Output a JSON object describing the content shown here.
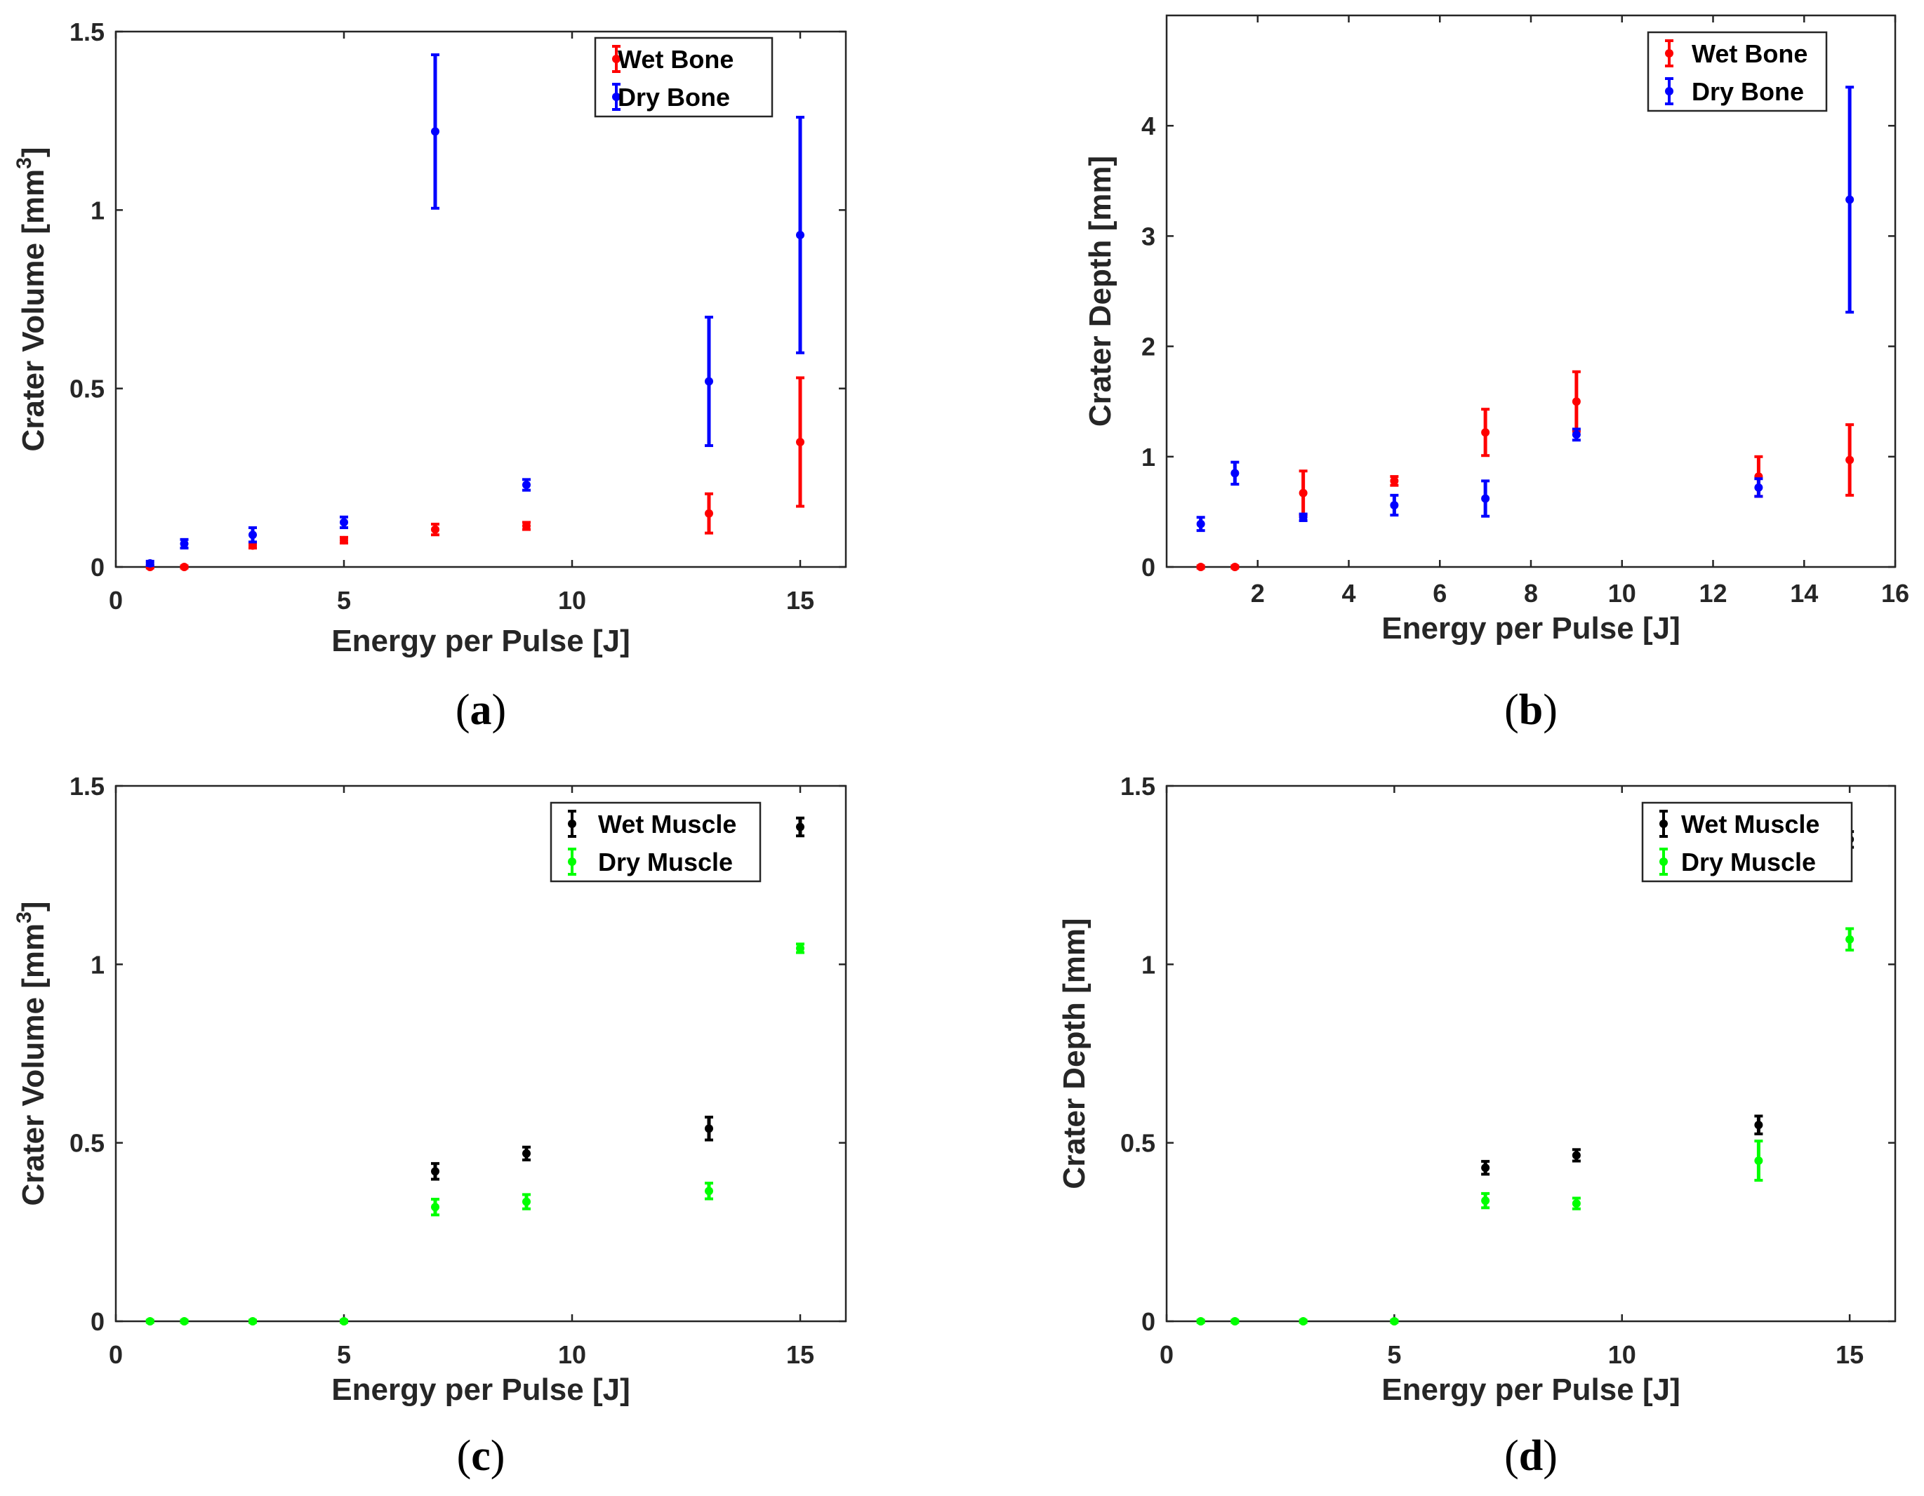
{
  "figure_title": "",
  "chart_data": [
    {
      "id": "a",
      "type": "scatter",
      "panel_label": "a",
      "title": "",
      "xlabel": "Energy per Pulse [J]",
      "ylabel": "Crater Volume [mm",
      "ylabel_sup": "3",
      "ylabel_end": "]",
      "xlim": [
        0,
        16
      ],
      "ylim": [
        0,
        1.5
      ],
      "xticks": [
        0,
        5,
        10,
        15
      ],
      "yticks": [
        0,
        0.5,
        1,
        1.5
      ],
      "xtick_labels": [
        "0",
        "5",
        "10",
        "15"
      ],
      "ytick_labels": [
        "0",
        "0.5",
        "1",
        "1.5"
      ],
      "legend_position": "top-right",
      "series": [
        {
          "name": "Wet Bone",
          "color": "#ff0000",
          "x": [
            0.75,
            1.5,
            3,
            5,
            7,
            9,
            13,
            15
          ],
          "y": [
            0.0,
            0.0,
            0.06,
            0.075,
            0.105,
            0.115,
            0.15,
            0.35
          ],
          "err": [
            0.003,
            0.003,
            0.007,
            0.008,
            0.015,
            0.01,
            0.055,
            0.18
          ]
        },
        {
          "name": "Dry Bone",
          "color": "#0000ff",
          "x": [
            0.75,
            1.5,
            3,
            5,
            7,
            9,
            13,
            15
          ],
          "y": [
            0.01,
            0.065,
            0.09,
            0.125,
            1.22,
            0.23,
            0.52,
            0.93
          ],
          "err": [
            0.006,
            0.012,
            0.02,
            0.015,
            0.215,
            0.015,
            0.18,
            0.33
          ]
        }
      ]
    },
    {
      "id": "b",
      "type": "scatter",
      "panel_label": "b",
      "title": "",
      "xlabel": "Energy per Pulse [J]",
      "ylabel": "Crater Depth [mm]",
      "ylabel_sup": "",
      "ylabel_end": "",
      "xlim": [
        0,
        16
      ],
      "ylim": [
        0,
        5
      ],
      "xticks": [
        2,
        4,
        6,
        8,
        10,
        12,
        14,
        16
      ],
      "yticks": [
        0,
        1,
        2,
        3,
        4
      ],
      "xtick_labels": [
        "2",
        "4",
        "6",
        "8",
        "10",
        "12",
        "14",
        "16"
      ],
      "ytick_labels": [
        "0",
        "1",
        "2",
        "3",
        "4"
      ],
      "legend_position": "top-right",
      "series": [
        {
          "name": "Wet Bone",
          "color": "#ff0000",
          "x": [
            0.75,
            1.5,
            3,
            5,
            7,
            9,
            13,
            15
          ],
          "y": [
            0.0,
            0.0,
            0.67,
            0.78,
            1.22,
            1.5,
            0.82,
            0.97
          ],
          "err": [
            0.01,
            0.01,
            0.2,
            0.04,
            0.21,
            0.27,
            0.18,
            0.32
          ]
        },
        {
          "name": "Dry Bone",
          "color": "#0000ff",
          "x": [
            0.75,
            1.5,
            3,
            5,
            7,
            9,
            13,
            15
          ],
          "y": [
            0.39,
            0.85,
            0.45,
            0.56,
            0.62,
            1.2,
            0.72,
            3.33
          ],
          "err": [
            0.06,
            0.1,
            0.03,
            0.09,
            0.16,
            0.05,
            0.08,
            1.02
          ]
        }
      ]
    },
    {
      "id": "c",
      "type": "scatter",
      "panel_label": "c",
      "title": "",
      "xlabel": "Energy per Pulse [J]",
      "ylabel": "Crater Volume [mm",
      "ylabel_sup": "3",
      "ylabel_end": "]",
      "xlim": [
        0,
        16
      ],
      "ylim": [
        0,
        1.5
      ],
      "xticks": [
        0,
        5,
        10,
        15
      ],
      "yticks": [
        0,
        0.5,
        1,
        1.5
      ],
      "xtick_labels": [
        "0",
        "5",
        "10",
        "15"
      ],
      "ytick_labels": [
        "0",
        "0.5",
        "1",
        "1.5"
      ],
      "legend_position": "top-right",
      "series": [
        {
          "name": "Wet Muscle",
          "color": "#000000",
          "x": [
            7,
            9,
            13,
            15
          ],
          "y": [
            0.42,
            0.47,
            0.54,
            1.385
          ],
          "err": [
            0.022,
            0.018,
            0.032,
            0.025
          ]
        },
        {
          "name": "Dry Muscle",
          "color": "#00ff00",
          "x": [
            0.75,
            1.5,
            3,
            5,
            7,
            9,
            13,
            15
          ],
          "y": [
            0.0,
            0.0,
            0.0,
            0.0,
            0.32,
            0.335,
            0.365,
            1.045
          ],
          "err": [
            0.003,
            0.003,
            0.003,
            0.003,
            0.022,
            0.02,
            0.022,
            0.012
          ]
        }
      ]
    },
    {
      "id": "d",
      "type": "scatter",
      "panel_label": "d",
      "title": "",
      "xlabel": "Energy per Pulse [J]",
      "ylabel": "Crater Depth [mm]",
      "ylabel_sup": "",
      "ylabel_end": "",
      "xlim": [
        0,
        16
      ],
      "ylim": [
        0,
        1.5
      ],
      "xticks": [
        0,
        5,
        10,
        15
      ],
      "yticks": [
        0,
        0.5,
        1,
        1.5
      ],
      "xtick_labels": [
        "0",
        "5",
        "10",
        "15"
      ],
      "ytick_labels": [
        "0",
        "0.5",
        "1",
        "1.5"
      ],
      "legend_position": "top-right",
      "series": [
        {
          "name": "Wet Muscle",
          "color": "#000000",
          "x": [
            7,
            9,
            13,
            15
          ],
          "y": [
            0.43,
            0.465,
            0.55,
            1.35
          ],
          "err": [
            0.018,
            0.016,
            0.025,
            0.022
          ]
        },
        {
          "name": "Dry Muscle",
          "color": "#00ff00",
          "x": [
            0.75,
            1.5,
            3,
            5,
            7,
            9,
            13,
            15
          ],
          "y": [
            0.0,
            0.0,
            0.0,
            0.0,
            0.338,
            0.33,
            0.45,
            1.07
          ],
          "err": [
            0.003,
            0.003,
            0.003,
            0.003,
            0.02,
            0.015,
            0.055,
            0.03
          ]
        }
      ]
    }
  ]
}
